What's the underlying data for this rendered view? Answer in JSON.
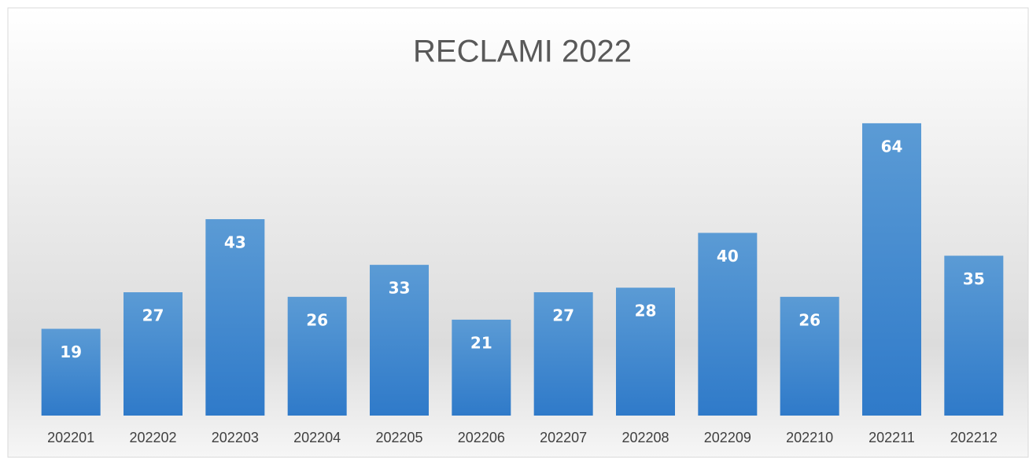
{
  "chart_data": {
    "type": "bar",
    "title": "RECLAMI 2022",
    "categories": [
      "202201",
      "202202",
      "202203",
      "202204",
      "202205",
      "202206",
      "202207",
      "202208",
      "202209",
      "202210",
      "202211",
      "202212"
    ],
    "values": [
      19,
      27,
      43,
      26,
      33,
      21,
      27,
      28,
      40,
      26,
      64,
      35
    ],
    "color": "#4a8fd6",
    "ylim": [
      0,
      70
    ]
  }
}
